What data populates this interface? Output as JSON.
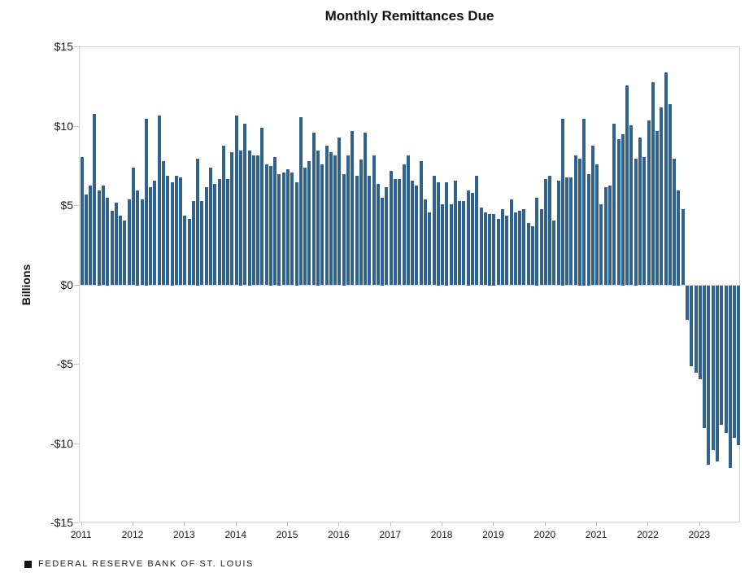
{
  "title": "Monthly Remittances Due",
  "footer": {
    "source_label": "FEDERAL RESERVE BANK OF ST. LOUIS"
  },
  "chart_data": {
    "type": "bar",
    "title": "Monthly Remittances Due",
    "xlabel": "",
    "ylabel": "Billions",
    "unit": "USD billions",
    "frequency": "monthly",
    "start_month": "2011-01",
    "end_month": "2023-10",
    "ylim": [
      -15,
      15
    ],
    "y_tick_labels": [
      "$15",
      "$10",
      "$5",
      "$0",
      "-$5",
      "-$10",
      "-$15"
    ],
    "x_tick_labels": [
      "2011",
      "2012",
      "2013",
      "2014",
      "2015",
      "2016",
      "2017",
      "2018",
      "2019",
      "2020",
      "2021",
      "2022",
      "2023"
    ],
    "grid": "off",
    "legend": "none",
    "bar_color": "#31628C",
    "axis_line_color": "#ccd4dd",
    "years": [
      {
        "year": "2011",
        "values": [
          8.1,
          5.7,
          6.3,
          10.8,
          6.0,
          6.3,
          5.5,
          4.7,
          5.2,
          4.4,
          4.1,
          5.4
        ]
      },
      {
        "year": "2012",
        "values": [
          7.4,
          6.0,
          5.4,
          10.5,
          6.2,
          6.6,
          10.7,
          7.8,
          6.9,
          6.5,
          6.9,
          6.8
        ]
      },
      {
        "year": "2013",
        "values": [
          4.4,
          4.2,
          5.3,
          8.0,
          5.3,
          6.2,
          7.4,
          6.4,
          6.7,
          8.8,
          6.7,
          8.4
        ]
      },
      {
        "year": "2014",
        "values": [
          10.7,
          8.5,
          10.2,
          8.5,
          8.2,
          8.2,
          9.9,
          7.6,
          7.5,
          8.1,
          7.0,
          7.1
        ]
      },
      {
        "year": "2015",
        "values": [
          7.3,
          7.1,
          6.5,
          10.6,
          7.4,
          7.8,
          9.6,
          8.5,
          7.6,
          8.8,
          8.4,
          8.2
        ]
      },
      {
        "year": "2016",
        "values": [
          9.3,
          7.0,
          8.2,
          9.7,
          6.9,
          7.9,
          9.6,
          6.9,
          8.2,
          6.4,
          5.5,
          6.2
        ]
      },
      {
        "year": "2017",
        "values": [
          7.2,
          6.7,
          6.7,
          7.6,
          8.2,
          6.6,
          6.3,
          7.8,
          5.4,
          4.6,
          6.9,
          6.5
        ]
      },
      {
        "year": "2018",
        "values": [
          5.1,
          6.5,
          5.1,
          6.6,
          5.3,
          5.3,
          6.0,
          5.8,
          6.9,
          4.9,
          4.6,
          4.5
        ]
      },
      {
        "year": "2019",
        "values": [
          4.5,
          4.2,
          4.8,
          4.4,
          5.4,
          4.6,
          4.7,
          4.8,
          3.9,
          3.7,
          5.5,
          4.8
        ]
      },
      {
        "year": "2020",
        "values": [
          6.7,
          6.9,
          4.1,
          6.6,
          10.5,
          6.8,
          6.8,
          8.2,
          8.0,
          10.5,
          7.0,
          8.8
        ]
      },
      {
        "year": "2021",
        "values": [
          7.6,
          5.1,
          6.2,
          6.3,
          10.2,
          9.2,
          9.5,
          12.6,
          10.1,
          8.0,
          9.3,
          8.1
        ]
      },
      {
        "year": "2022",
        "values": [
          10.4,
          12.8,
          9.7,
          11.2,
          13.4,
          11.4,
          8.0,
          6.0,
          4.8,
          -2.2,
          -5.1,
          -5.5
        ]
      },
      {
        "year": "2023",
        "values": [
          -5.9,
          -9.0,
          -11.3,
          -10.4,
          -11.1,
          -8.8,
          -9.3,
          -11.5,
          -9.6,
          -10.1
        ]
      }
    ]
  }
}
